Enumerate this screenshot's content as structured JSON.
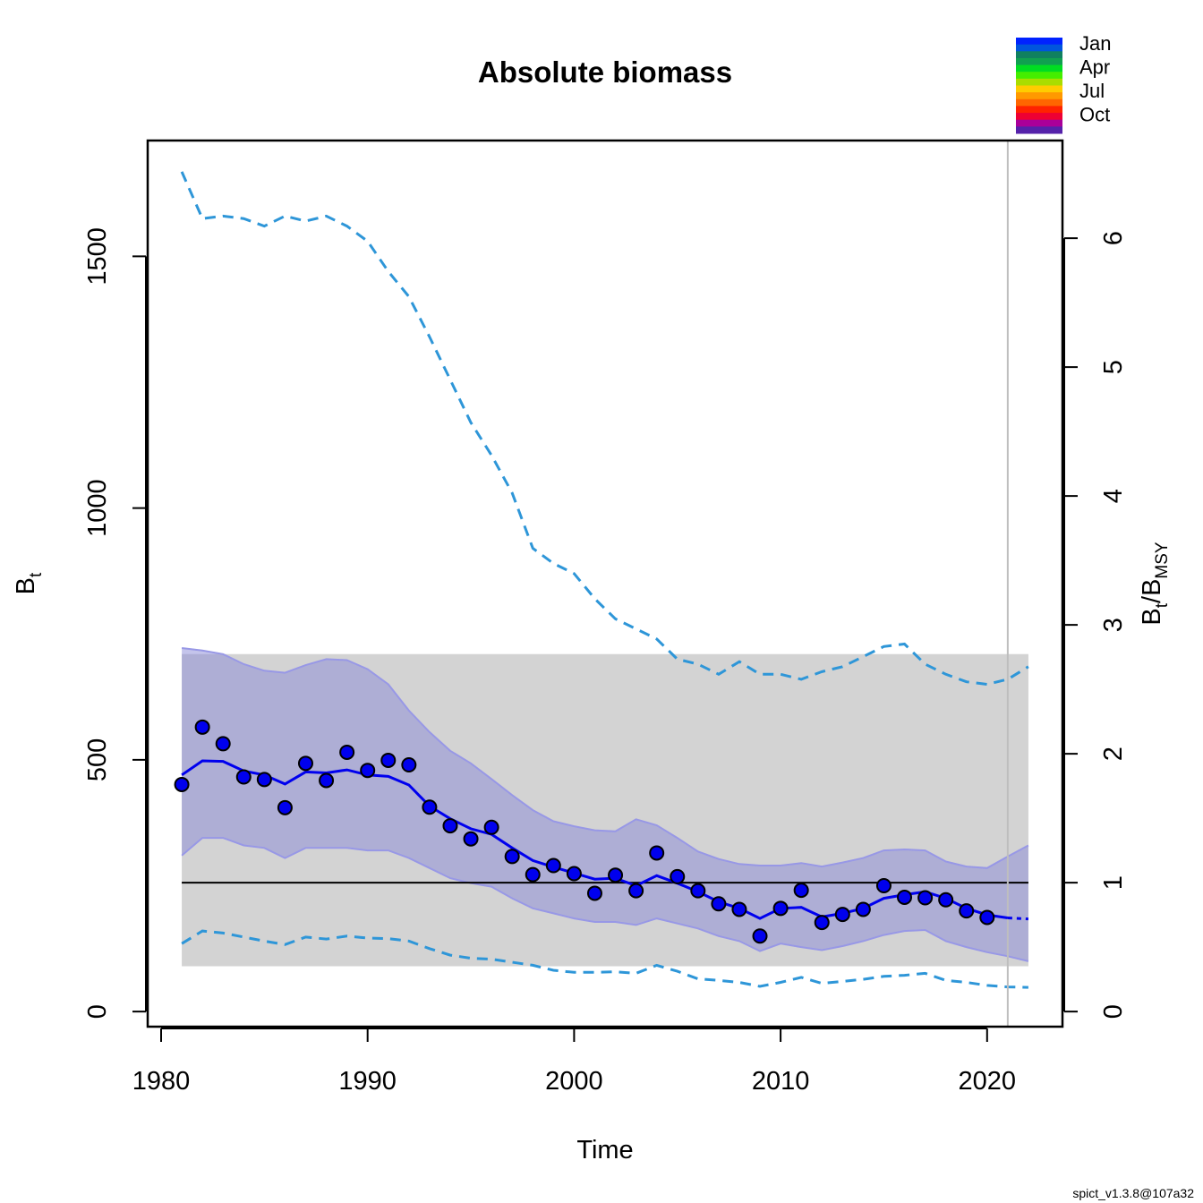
{
  "chart_data": {
    "type": "line",
    "title": "Absolute biomass",
    "xlabel": "Time",
    "ylabel": "B",
    "ylabel_sub": "t",
    "ylabel_right": "B",
    "ylabel_right_sub1": "t",
    "ylabel_right_slash": "/B",
    "ylabel_right_sub2": "MSY",
    "xlim": [
      1979.35,
      2023.65
    ],
    "ylim": [
      -30,
      1730
    ],
    "x_ticks": [
      1980,
      1990,
      2000,
      2010,
      2020
    ],
    "x_tick_labels": [
      "1980",
      "1990",
      "2000",
      "2010",
      "2020"
    ],
    "y_ticks": [
      0,
      500,
      1000,
      1500
    ],
    "y_tick_labels": [
      "0",
      "500",
      "1000",
      "1500"
    ],
    "right_axis_ratio": 256,
    "right_ticks": [
      0,
      1,
      2,
      3,
      4,
      5,
      6
    ],
    "right_tick_labels": [
      "0",
      "1",
      "2",
      "3",
      "4",
      "5",
      "6"
    ],
    "bmsy_line": 256,
    "bmsy_band": {
      "x": [
        1981,
        2022
      ],
      "y": [
        90,
        710
      ]
    },
    "vertical_line_x": 2021,
    "observations": {
      "x": [
        1981,
        1982,
        1983,
        1984,
        1985,
        1986,
        1987,
        1988,
        1989,
        1990,
        1991,
        1992,
        1993,
        1994,
        1995,
        1996,
        1997,
        1998,
        1999,
        2000,
        2001,
        2002,
        2003,
        2004,
        2005,
        2006,
        2007,
        2008,
        2009,
        2010,
        2011,
        2012,
        2013,
        2014,
        2015,
        2016,
        2017,
        2018,
        2019,
        2020
      ],
      "y": [
        451,
        565,
        532,
        466,
        461,
        405,
        493,
        459,
        515,
        479,
        499,
        490,
        406,
        369,
        343,
        366,
        308,
        272,
        290,
        274,
        235,
        271,
        240,
        315,
        268,
        240,
        214,
        203,
        150,
        205,
        241,
        177,
        193,
        203,
        250,
        227,
        226,
        222,
        200,
        187
      ]
    },
    "estimate": {
      "x": [
        1981,
        1982,
        1983,
        1984,
        1985,
        1986,
        1987,
        1988,
        1989,
        1990,
        1991,
        1992,
        1993,
        1994,
        1995,
        1996,
        1997,
        1998,
        1999,
        2000,
        2001,
        2002,
        2003,
        2004,
        2005,
        2006,
        2007,
        2008,
        2009,
        2010,
        2011,
        2012,
        2013,
        2014,
        2015,
        2016,
        2017,
        2018,
        2019,
        2020,
        2021
      ],
      "y": [
        470,
        498,
        497,
        478,
        470,
        452,
        476,
        474,
        480,
        470,
        467,
        450,
        408,
        383,
        363,
        352,
        325,
        300,
        287,
        275,
        263,
        265,
        250,
        270,
        255,
        238,
        218,
        205,
        185,
        205,
        207,
        188,
        195,
        205,
        225,
        232,
        238,
        225,
        205,
        192,
        186
      ]
    },
    "forecast": {
      "x": [
        2021,
        2022
      ],
      "y": [
        186,
        184
      ]
    },
    "ci_band": {
      "x": [
        1981,
        1982,
        1983,
        1984,
        1985,
        1986,
        1987,
        1988,
        1989,
        1990,
        1991,
        1992,
        1993,
        1994,
        1995,
        1996,
        1997,
        1998,
        1999,
        2000,
        2001,
        2002,
        2003,
        2004,
        2005,
        2006,
        2007,
        2008,
        2009,
        2010,
        2011,
        2012,
        2013,
        2014,
        2015,
        2016,
        2017,
        2018,
        2019,
        2020,
        2021,
        2022
      ],
      "upper": [
        722,
        717,
        710,
        690,
        677,
        673,
        688,
        700,
        698,
        680,
        650,
        598,
        555,
        518,
        493,
        462,
        430,
        400,
        378,
        368,
        360,
        358,
        382,
        370,
        345,
        318,
        303,
        293,
        290,
        290,
        295,
        288,
        296,
        305,
        320,
        322,
        320,
        298,
        288,
        285,
        308,
        330
      ],
      "lower": [
        310,
        345,
        345,
        330,
        325,
        305,
        325,
        325,
        325,
        320,
        320,
        305,
        285,
        265,
        255,
        248,
        225,
        205,
        195,
        185,
        178,
        178,
        172,
        185,
        175,
        165,
        150,
        140,
        120,
        135,
        128,
        122,
        130,
        140,
        152,
        160,
        162,
        140,
        128,
        118,
        110,
        100
      ]
    },
    "outer_upper": {
      "x": [
        1981,
        1982,
        1983,
        1984,
        1985,
        1986,
        1987,
        1988,
        1989,
        1990,
        1991,
        1992,
        1993,
        1994,
        1995,
        1996,
        1997,
        1998,
        1999,
        2000,
        2001,
        2002,
        2003,
        2004,
        2005,
        2006,
        2007,
        2008,
        2009,
        2010,
        2011,
        2012,
        2013,
        2014,
        2015,
        2016,
        2017,
        2018,
        2019,
        2020,
        2021,
        2022
      ],
      "y": [
        1668,
        1575,
        1580,
        1575,
        1560,
        1580,
        1570,
        1580,
        1560,
        1530,
        1470,
        1420,
        1340,
        1255,
        1170,
        1105,
        1030,
        920,
        890,
        870,
        820,
        780,
        760,
        740,
        700,
        690,
        670,
        695,
        670,
        670,
        660,
        675,
        685,
        705,
        725,
        730,
        690,
        670,
        655,
        650,
        660,
        685
      ]
    },
    "outer_lower": {
      "x": [
        1981,
        1982,
        1983,
        1984,
        1985,
        1986,
        1987,
        1988,
        1989,
        1990,
        1991,
        1992,
        1993,
        1994,
        1995,
        1996,
        1997,
        1998,
        1999,
        2000,
        2001,
        2002,
        2003,
        2004,
        2005,
        2006,
        2007,
        2008,
        2009,
        2010,
        2011,
        2012,
        2013,
        2014,
        2015,
        2016,
        2017,
        2018,
        2019,
        2020,
        2021,
        2022
      ],
      "y": [
        135,
        160,
        156,
        148,
        140,
        133,
        148,
        144,
        150,
        146,
        145,
        140,
        125,
        112,
        106,
        104,
        98,
        92,
        82,
        78,
        78,
        79,
        76,
        92,
        80,
        65,
        62,
        58,
        50,
        58,
        68,
        56,
        60,
        64,
        70,
        72,
        76,
        62,
        58,
        52,
        49,
        48
      ]
    }
  },
  "legend": {
    "labels": [
      "Jan",
      "Apr",
      "Jul",
      "Oct"
    ],
    "colors": [
      "#0022ff",
      "#0055dd",
      "#108060",
      "#10a050",
      "#00dd22",
      "#44ee00",
      "#aadd00",
      "#ffcc00",
      "#ff9900",
      "#ff6600",
      "#ff2200",
      "#ee0033",
      "#aa0099",
      "#5522aa"
    ]
  },
  "footnote": "spict_v1.3.8@107a32",
  "colors": {
    "band_grey": "#d3d3d3",
    "ci_fill": "#8a8ad8",
    "ci_edge": "#9898e6",
    "estimate_line": "#0000ee",
    "outer_dashed": "#2e96d8",
    "points_fill": "#0000ee",
    "bmsy_line": "#000000",
    "vertical_line": "#bebebe"
  }
}
